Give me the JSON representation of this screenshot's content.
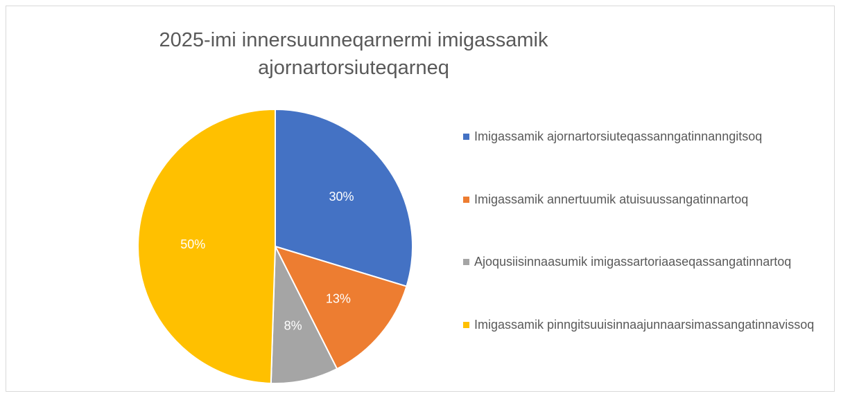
{
  "chart_data": {
    "type": "pie",
    "title": "2025-imi innersuunneqarnermi imigassamik ajornartorsiuteqarneq",
    "categories": [
      "Imigassamik ajornartorsiuteqassanngatinnanngitsoq",
      "Imigassamik annertuumik atuisuussangatinnartoq",
      "Ajoqusiisinnaasumik imigassartoriaaseqassangatinnartoq",
      "Imigassamik pinngitsuuisinnaajunnaarsimassangatinnavissoq"
    ],
    "values": [
      30,
      13,
      8,
      50
    ],
    "value_labels": [
      "30%",
      "13%",
      "8%",
      "50%"
    ],
    "colors": [
      "#4472c4",
      "#ed7d31",
      "#a5a5a5",
      "#ffc000"
    ],
    "legend": "right"
  }
}
